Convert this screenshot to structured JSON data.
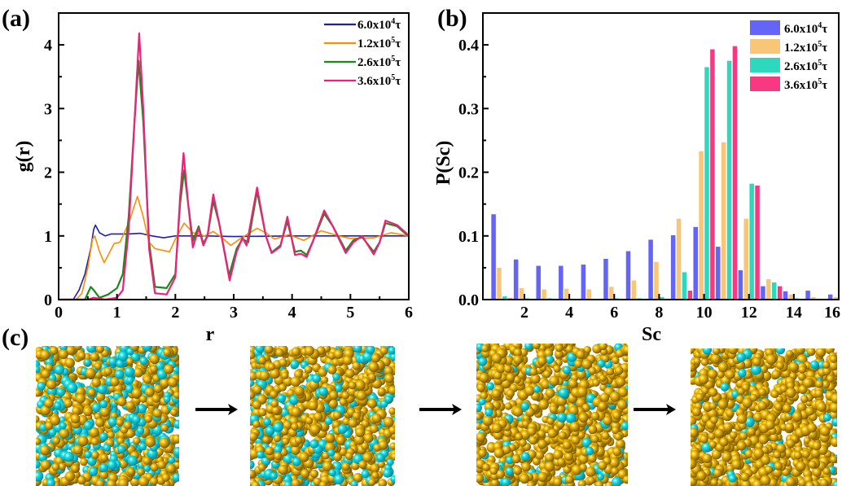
{
  "panels": {
    "a": "(a)",
    "b": "(b)",
    "c": "(c)"
  },
  "chart_data": [
    {
      "type": "line",
      "xlabel": "r",
      "ylabel": "g(r)",
      "xlim": [
        0,
        6
      ],
      "ylim": [
        0,
        4.5
      ],
      "xticks": [
        "0",
        "1",
        "2",
        "3",
        "4",
        "5",
        "6"
      ],
      "yticks": [
        "0",
        "1",
        "2",
        "3",
        "4"
      ],
      "legend_position": "top-right",
      "grid": false,
      "series": [
        {
          "name": "6.0x10",
          "exp": "4",
          "unit": "τ",
          "color": "#1f1fa8",
          "points": [
            [
              0,
              0
            ],
            [
              0.25,
              0
            ],
            [
              0.35,
              0.15
            ],
            [
              0.45,
              0.4
            ],
            [
              0.55,
              0.8
            ],
            [
              0.6,
              1.1
            ],
            [
              0.63,
              1.17
            ],
            [
              0.7,
              1.05
            ],
            [
              0.8,
              1.0
            ],
            [
              0.9,
              1.03
            ],
            [
              1.0,
              1.03
            ],
            [
              1.2,
              1.03
            ],
            [
              1.4,
              1.04
            ],
            [
              1.6,
              1.0
            ],
            [
              1.8,
              0.97
            ],
            [
              2.0,
              1.0
            ],
            [
              2.5,
              1.0
            ],
            [
              3.0,
              0.99
            ],
            [
              4.0,
              1.0
            ],
            [
              5.0,
              1.0
            ],
            [
              6,
              1.0
            ]
          ]
        },
        {
          "name": "1.2x10",
          "exp": "5",
          "unit": "τ",
          "color": "#ff8c00",
          "points": [
            [
              0,
              0
            ],
            [
              0.3,
              0
            ],
            [
              0.4,
              0.1
            ],
            [
              0.5,
              0.5
            ],
            [
              0.58,
              0.95
            ],
            [
              0.62,
              1.0
            ],
            [
              0.7,
              0.75
            ],
            [
              0.78,
              0.58
            ],
            [
              0.85,
              0.7
            ],
            [
              0.95,
              0.88
            ],
            [
              1.05,
              0.9
            ],
            [
              1.2,
              1.2
            ],
            [
              1.35,
              1.62
            ],
            [
              1.45,
              1.3
            ],
            [
              1.55,
              0.9
            ],
            [
              1.65,
              0.8
            ],
            [
              1.9,
              0.75
            ],
            [
              2.0,
              0.95
            ],
            [
              2.15,
              1.2
            ],
            [
              2.3,
              1.05
            ],
            [
              2.5,
              1.0
            ],
            [
              2.65,
              1.07
            ],
            [
              2.8,
              0.97
            ],
            [
              2.95,
              0.85
            ],
            [
              3.1,
              0.95
            ],
            [
              3.4,
              1.12
            ],
            [
              3.55,
              1.05
            ],
            [
              3.7,
              0.95
            ],
            [
              3.95,
              1.02
            ],
            [
              4.2,
              0.93
            ],
            [
              4.5,
              1.08
            ],
            [
              4.8,
              1.0
            ],
            [
              5.0,
              0.96
            ],
            [
              5.4,
              0.97
            ],
            [
              5.7,
              1.05
            ],
            [
              6,
              1.0
            ]
          ]
        },
        {
          "name": "2.6x10",
          "exp": "5",
          "unit": "τ",
          "color": "#1a8a1a",
          "points": [
            [
              0,
              0
            ],
            [
              0.45,
              0
            ],
            [
              0.55,
              0.2
            ],
            [
              0.6,
              0.15
            ],
            [
              0.7,
              0.03
            ],
            [
              0.85,
              0.08
            ],
            [
              1.0,
              0.18
            ],
            [
              1.1,
              0.4
            ],
            [
              1.2,
              1.3
            ],
            [
              1.3,
              2.8
            ],
            [
              1.37,
              3.75
            ],
            [
              1.45,
              2.8
            ],
            [
              1.55,
              0.9
            ],
            [
              1.65,
              0.2
            ],
            [
              1.85,
              0.18
            ],
            [
              2.0,
              0.4
            ],
            [
              2.08,
              1.5
            ],
            [
              2.15,
              2.03
            ],
            [
              2.22,
              1.5
            ],
            [
              2.3,
              0.92
            ],
            [
              2.4,
              1.15
            ],
            [
              2.48,
              0.88
            ],
            [
              2.55,
              1.0
            ],
            [
              2.65,
              1.55
            ],
            [
              2.75,
              1.2
            ],
            [
              2.92,
              0.38
            ],
            [
              3.05,
              0.8
            ],
            [
              3.15,
              0.95
            ],
            [
              3.25,
              0.9
            ],
            [
              3.4,
              1.7
            ],
            [
              3.55,
              1.0
            ],
            [
              3.65,
              0.74
            ],
            [
              3.8,
              0.85
            ],
            [
              3.92,
              1.23
            ],
            [
              4.05,
              0.75
            ],
            [
              4.15,
              0.77
            ],
            [
              4.25,
              0.7
            ],
            [
              4.35,
              0.9
            ],
            [
              4.55,
              1.35
            ],
            [
              4.7,
              1.15
            ],
            [
              4.92,
              0.77
            ],
            [
              5.05,
              0.93
            ],
            [
              5.2,
              0.98
            ],
            [
              5.4,
              0.75
            ],
            [
              5.5,
              0.9
            ],
            [
              5.6,
              1.2
            ],
            [
              5.8,
              1.15
            ],
            [
              5.95,
              1.03
            ],
            [
              6,
              1.0
            ]
          ]
        },
        {
          "name": "3.6x10",
          "exp": "5",
          "unit": "τ",
          "color": "#f0207a",
          "points": [
            [
              0,
              0
            ],
            [
              0.5,
              0
            ],
            [
              0.6,
              0.03
            ],
            [
              0.8,
              0
            ],
            [
              1.0,
              0.03
            ],
            [
              1.1,
              0.15
            ],
            [
              1.2,
              1.1
            ],
            [
              1.3,
              2.8
            ],
            [
              1.38,
              4.18
            ],
            [
              1.45,
              3.0
            ],
            [
              1.55,
              0.8
            ],
            [
              1.65,
              0.1
            ],
            [
              1.85,
              0.08
            ],
            [
              2.0,
              0.35
            ],
            [
              2.08,
              1.6
            ],
            [
              2.14,
              2.3
            ],
            [
              2.22,
              1.5
            ],
            [
              2.3,
              0.82
            ],
            [
              2.4,
              1.12
            ],
            [
              2.48,
              0.85
            ],
            [
              2.55,
              1.0
            ],
            [
              2.65,
              1.65
            ],
            [
              2.75,
              1.2
            ],
            [
              2.93,
              0.3
            ],
            [
              3.05,
              0.75
            ],
            [
              3.15,
              0.97
            ],
            [
              3.22,
              0.85
            ],
            [
              3.4,
              1.76
            ],
            [
              3.55,
              1.0
            ],
            [
              3.65,
              0.73
            ],
            [
              3.8,
              0.83
            ],
            [
              3.92,
              1.3
            ],
            [
              4.05,
              0.7
            ],
            [
              4.15,
              0.72
            ],
            [
              4.25,
              0.67
            ],
            [
              4.35,
              0.9
            ],
            [
              4.55,
              1.4
            ],
            [
              4.7,
              1.15
            ],
            [
              4.92,
              0.73
            ],
            [
              5.05,
              0.9
            ],
            [
              5.2,
              1.0
            ],
            [
              5.4,
              0.71
            ],
            [
              5.5,
              0.9
            ],
            [
              5.6,
              1.24
            ],
            [
              5.8,
              1.17
            ],
            [
              5.95,
              1.05
            ],
            [
              6,
              1.0
            ]
          ]
        }
      ]
    },
    {
      "type": "bar",
      "xlabel": "Sc",
      "ylabel": "P(Sc)",
      "xlim": [
        0.15,
        16
      ],
      "ylim": [
        0,
        0.45
      ],
      "xticks": [
        "2",
        "4",
        "6",
        "8",
        "10",
        "12",
        "14",
        "16"
      ],
      "yticks": [
        "0.0",
        "0.1",
        "0.2",
        "0.3",
        "0.4"
      ],
      "legend_position": "top-right",
      "grid": false,
      "categories": [
        1,
        2,
        3,
        4,
        5,
        6,
        7,
        8,
        9,
        10,
        11,
        12,
        13,
        14,
        15,
        16
      ],
      "series": [
        {
          "name": "6.0x10",
          "exp": "4",
          "unit": "τ",
          "color": "#6464f8",
          "values": [
            0.134,
            0.063,
            0.053,
            0.053,
            0.055,
            0.064,
            0.076,
            0.094,
            0.101,
            0.114,
            0.083,
            0.046,
            0.021,
            0.013,
            0.014,
            0.008
          ]
        },
        {
          "name": "1.2x10",
          "exp": "5",
          "unit": "τ",
          "color": "#f8c676",
          "values": [
            0.05,
            0.018,
            0.016,
            0.017,
            0.016,
            0.02,
            0.03,
            0.059,
            0.127,
            0.233,
            0.247,
            0.127,
            0.032,
            0.008,
            0.004,
            0.004
          ]
        },
        {
          "name": "2.6x10",
          "exp": "5",
          "unit": "τ",
          "color": "#2ed8bc",
          "values": [
            0.005,
            0.002,
            0.002,
            0.001,
            0.001,
            0.002,
            0.002,
            0.004,
            0.043,
            0.365,
            0.375,
            0.182,
            0.027,
            0.002,
            0,
            0
          ]
        },
        {
          "name": "3.6x10",
          "exp": "5",
          "unit": "τ",
          "color": "#f83880",
          "values": [
            0.002,
            0.001,
            0.001,
            0,
            0.001,
            0.001,
            0.001,
            0.001,
            0.014,
            0.393,
            0.398,
            0.179,
            0.021,
            0,
            0,
            0
          ]
        }
      ]
    }
  ],
  "snapshots": {
    "count": 4,
    "colors": {
      "particle_a": "#f0b800",
      "particle_b": "#10e0f0"
    },
    "cyan_fraction": [
      0.38,
      0.25,
      0.12,
      0.08
    ]
  }
}
